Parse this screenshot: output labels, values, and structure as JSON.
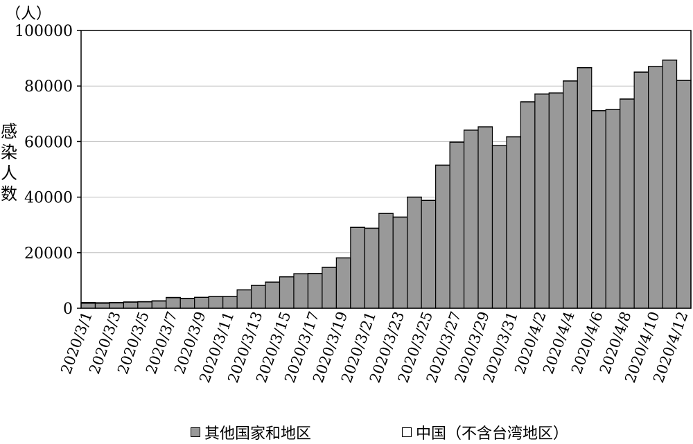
{
  "chart_data": {
    "type": "bar",
    "unit_label": "（人）",
    "ylabel": "感染人数",
    "ylim": [
      0,
      100000
    ],
    "yticks": [
      "0",
      "20000",
      "40000",
      "60000",
      "80000",
      "100000"
    ],
    "grid": true,
    "categories": [
      "2020/3/1",
      "2020/3/2",
      "2020/3/3",
      "2020/3/4",
      "2020/3/5",
      "2020/3/6",
      "2020/3/7",
      "2020/3/8",
      "2020/3/9",
      "2020/3/10",
      "2020/3/11",
      "2020/3/12",
      "2020/3/13",
      "2020/3/14",
      "2020/3/15",
      "2020/3/16",
      "2020/3/17",
      "2020/3/18",
      "2020/3/19",
      "2020/3/20",
      "2020/3/21",
      "2020/3/22",
      "2020/3/23",
      "2020/3/24",
      "2020/3/25",
      "2020/3/26",
      "2020/3/27",
      "2020/3/28",
      "2020/3/29",
      "2020/3/30",
      "2020/3/31",
      "2020/4/1",
      "2020/4/2",
      "2020/4/3",
      "2020/4/4",
      "2020/4/5",
      "2020/4/6",
      "2020/4/7",
      "2020/4/8",
      "2020/4/9",
      "2020/4/10",
      "2020/4/11",
      "2020/4/12"
    ],
    "xtick_labels": [
      "2020/3/1",
      "2020/3/3",
      "2020/3/5",
      "2020/3/7",
      "2020/3/9",
      "2020/3/11",
      "2020/3/13",
      "2020/3/15",
      "2020/3/17",
      "2020/3/19",
      "2020/3/21",
      "2020/3/23",
      "2020/3/25",
      "2020/3/27",
      "2020/3/29",
      "2020/3/31",
      "2020/4/2",
      "2020/4/4",
      "2020/4/6",
      "2020/4/8",
      "2020/4/10",
      "2020/4/12"
    ],
    "series": [
      {
        "name": "其他国家和地区",
        "color": "#999999",
        "values": [
          1800,
          1800,
          1900,
          2200,
          2300,
          2600,
          3800,
          3500,
          3900,
          4200,
          4200,
          6600,
          8200,
          9400,
          11300,
          12400,
          12500,
          14700,
          18100,
          29100,
          28800,
          34100,
          32800,
          40000,
          38800,
          51500,
          59800,
          64100,
          65300,
          58500,
          61700,
          74300,
          77100,
          77500,
          81800,
          86600,
          71100,
          71500,
          75300,
          85000,
          87000,
          89300,
          82000
        ]
      },
      {
        "name": "中国（不含台湾地区）",
        "color": "#ffffff",
        "values": [
          300,
          200,
          200,
          100,
          100,
          100,
          100,
          100,
          50,
          50,
          50,
          50,
          50,
          50,
          50,
          50,
          50,
          50,
          50,
          50,
          50,
          50,
          50,
          50,
          50,
          50,
          50,
          50,
          50,
          50,
          50,
          50,
          50,
          50,
          50,
          50,
          50,
          50,
          50,
          50,
          50,
          50,
          50
        ]
      }
    ],
    "legend_position": "bottom"
  }
}
